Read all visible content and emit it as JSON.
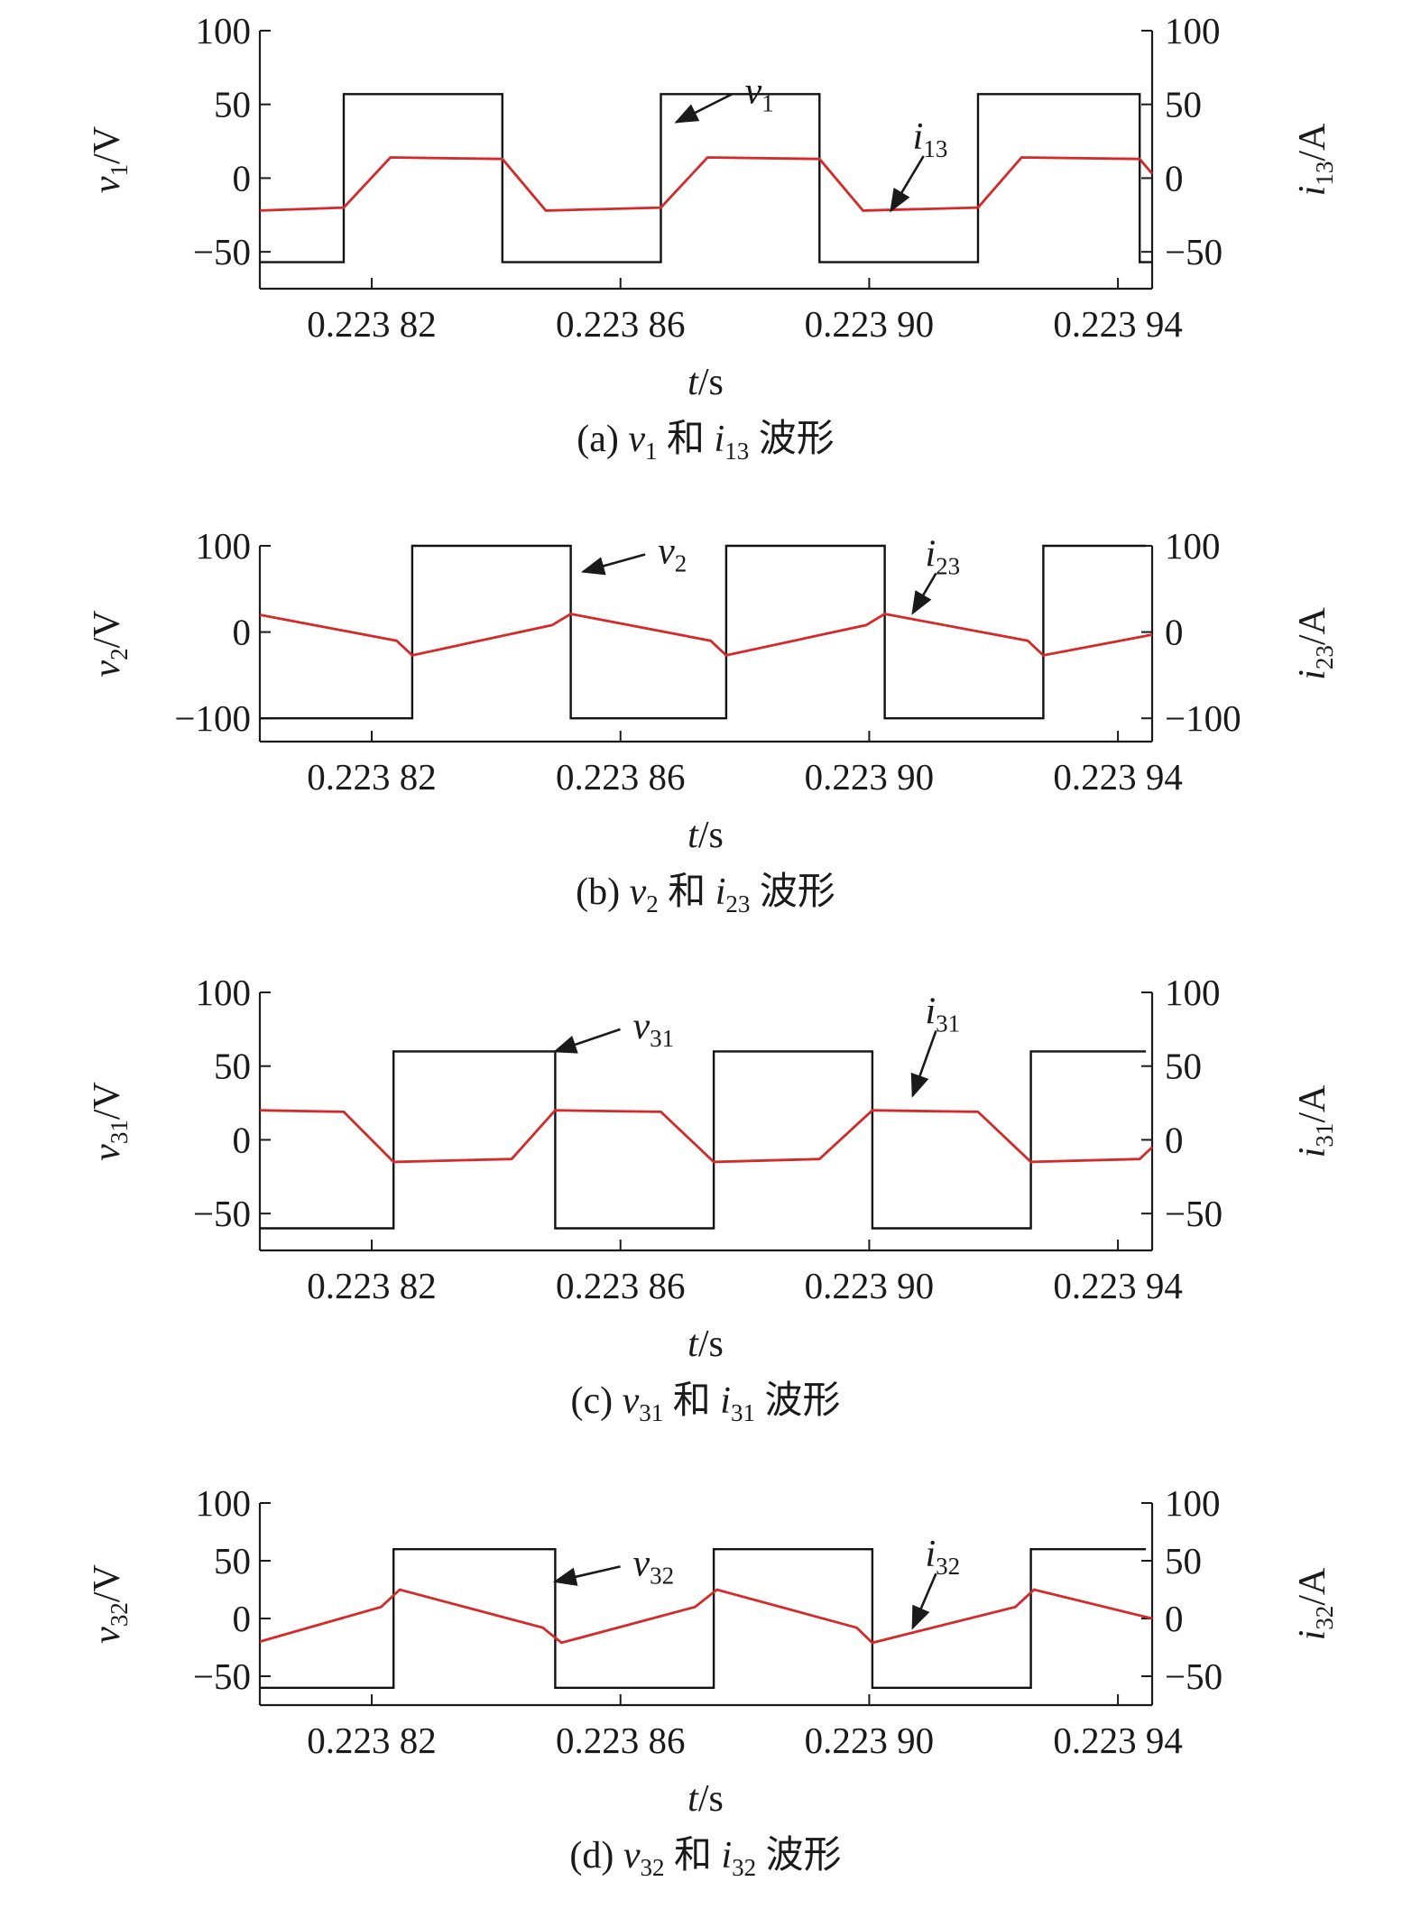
{
  "colors": {
    "voltage": "#111111",
    "current": "#d42a2a",
    "axis": "#1a1a1a"
  },
  "chart_data": [
    {
      "type": "line",
      "id": "a",
      "caption": {
        "label": "(a)",
        "v_sym": "v",
        "v_sub": "1",
        "and": "和",
        "i_sym": "i",
        "i_sub": "13",
        "tail": "波形"
      },
      "xlabel": {
        "sym": "t",
        "unit": "/s"
      },
      "ylabel_left": {
        "sym": "v",
        "sub": "1",
        "unit": "/V"
      },
      "ylabel_right": {
        "sym": "i",
        "sub": "13",
        "unit": "/A"
      },
      "xlim": [
        0.223802,
        0.2239455
      ],
      "ylim": [
        -75,
        100
      ],
      "x_ticks": [
        0.22382,
        0.22386,
        0.2239,
        0.22394
      ],
      "x_tick_labels": [
        "0.223 82",
        "0.223 86",
        "0.223 90",
        "0.223 94"
      ],
      "y_ticks_left": [
        100,
        50,
        0,
        -50
      ],
      "y_tick_labels_left": [
        "100",
        "50",
        "0",
        "−50"
      ],
      "y_ticks_right": [
        100,
        50,
        0,
        -50
      ],
      "y_tick_labels_right": [
        "100",
        "50",
        "0",
        "−50"
      ],
      "series": [
        {
          "name": "v1",
          "axis": "left",
          "x": [
            0.223802,
            0.2238155,
            0.2238155,
            0.223841,
            0.223841,
            0.2238665,
            0.2238665,
            0.223892,
            0.223892,
            0.2239175,
            0.2239175,
            0.2239435,
            0.2239435,
            0.2239455
          ],
          "y": [
            -57,
            -57,
            57,
            57,
            -57,
            -57,
            57,
            57,
            -57,
            -57,
            57,
            57,
            -57,
            -57
          ]
        },
        {
          "name": "i13",
          "axis": "right",
          "x": [
            0.223802,
            0.2238155,
            0.223823,
            0.223841,
            0.223848,
            0.2238665,
            0.223874,
            0.223892,
            0.223899,
            0.2239175,
            0.2239245,
            0.2239435,
            0.2239455
          ],
          "y": [
            -22,
            -20,
            14,
            13,
            -22,
            -20,
            14,
            13,
            -22,
            -20,
            14,
            13,
            3
          ]
        }
      ],
      "annotations": [
        {
          "name": "v1-annotation",
          "sym": "v",
          "sub": "1",
          "x": 0.223869,
          "y": 38,
          "tx": 0.22388,
          "ty": 57
        },
        {
          "name": "i13-annotation",
          "sym": "i",
          "sub": "13",
          "x": 0.2239035,
          "y": -22,
          "tx": 0.223907,
          "ty": 26
        }
      ]
    },
    {
      "type": "line",
      "id": "b",
      "caption": {
        "label": "(b)",
        "v_sym": "v",
        "v_sub": "2",
        "and": "和",
        "i_sym": "i",
        "i_sub": "23",
        "tail": "波形"
      },
      "xlabel": {
        "sym": "t",
        "unit": "/s"
      },
      "ylabel_left": {
        "sym": "v",
        "sub": "2",
        "unit": "/V"
      },
      "ylabel_right": {
        "sym": "i",
        "sub": "23",
        "unit": "/A"
      },
      "xlim": [
        0.223802,
        0.2239455
      ],
      "ylim": [
        -127,
        100
      ],
      "x_ticks": [
        0.22382,
        0.22386,
        0.2239,
        0.22394
      ],
      "x_tick_labels": [
        "0.223 82",
        "0.223 86",
        "0.223 90",
        "0.223 94"
      ],
      "y_ticks_left": [
        100,
        0,
        -100
      ],
      "y_tick_labels_left": [
        "100",
        "0",
        "−100"
      ],
      "y_ticks_right": [
        100,
        0,
        -100
      ],
      "y_tick_labels_right": [
        "100",
        "0",
        "−100"
      ],
      "series": [
        {
          "name": "v2",
          "axis": "left",
          "x": [
            0.223802,
            0.2238265,
            0.2238265,
            0.223852,
            0.223852,
            0.223877,
            0.223877,
            0.2239025,
            0.2239025,
            0.223928,
            0.223928,
            0.2239445
          ],
          "y": [
            -100,
            -100,
            100,
            100,
            -100,
            -100,
            100,
            100,
            -100,
            -100,
            100,
            100
          ]
        },
        {
          "name": "i23",
          "axis": "right",
          "x": [
            0.223802,
            0.223824,
            0.2238265,
            0.223849,
            0.223852,
            0.2238745,
            0.223877,
            0.2238995,
            0.2239025,
            0.2239255,
            0.223928,
            0.2239455
          ],
          "y": [
            20,
            -10,
            -27,
            8,
            21,
            -10,
            -27,
            8,
            21,
            -10,
            -27,
            -3
          ]
        }
      ],
      "annotations": [
        {
          "name": "v2-annotation",
          "sym": "v",
          "sub": "2",
          "x": 0.223854,
          "y": 70,
          "tx": 0.223866,
          "ty": 90
        },
        {
          "name": "i23-annotation",
          "sym": "i",
          "sub": "23",
          "x": 0.223907,
          "y": 22,
          "tx": 0.223909,
          "ty": 87
        }
      ]
    },
    {
      "type": "line",
      "id": "c",
      "caption": {
        "label": "(c)",
        "v_sym": "v",
        "v_sub": "31",
        "and": "和",
        "i_sym": "i",
        "i_sub": "31",
        "tail": "波形"
      },
      "xlabel": {
        "sym": "t",
        "unit": "/s"
      },
      "ylabel_left": {
        "sym": "v",
        "sub": "31",
        "unit": "/V"
      },
      "ylabel_right": {
        "sym": "i",
        "sub": "31",
        "unit": "/A"
      },
      "xlim": [
        0.223802,
        0.2239455
      ],
      "ylim": [
        -75,
        100
      ],
      "x_ticks": [
        0.22382,
        0.22386,
        0.2239,
        0.22394
      ],
      "x_tick_labels": [
        "0.223 82",
        "0.223 86",
        "0.223 90",
        "0.223 94"
      ],
      "y_ticks_left": [
        100,
        50,
        0,
        -50
      ],
      "y_tick_labels_left": [
        "100",
        "50",
        "0",
        "−50"
      ],
      "y_ticks_right": [
        100,
        50,
        0,
        -50
      ],
      "y_tick_labels_right": [
        "100",
        "50",
        "0",
        "−50"
      ],
      "series": [
        {
          "name": "v31",
          "axis": "left",
          "x": [
            0.223802,
            0.2238235,
            0.2238235,
            0.2238495,
            0.2238495,
            0.223875,
            0.223875,
            0.2239005,
            0.2239005,
            0.223926,
            0.223926,
            0.2239445
          ],
          "y": [
            -60,
            -60,
            60,
            60,
            -60,
            -60,
            60,
            60,
            -60,
            -60,
            60,
            60
          ]
        },
        {
          "name": "i31",
          "axis": "right",
          "x": [
            0.223802,
            0.2238155,
            0.2238235,
            0.2238425,
            0.2238495,
            0.2238665,
            0.223875,
            0.223892,
            0.2239005,
            0.2239175,
            0.223926,
            0.2239435,
            0.2239455
          ],
          "y": [
            20,
            19,
            -15,
            -13,
            20,
            19,
            -15,
            -13,
            20,
            19,
            -15,
            -13,
            -5
          ]
        }
      ],
      "annotations": [
        {
          "name": "v31-annotation",
          "sym": "v",
          "sub": "31",
          "x": 0.2238495,
          "y": 60,
          "tx": 0.223862,
          "ty": 75
        },
        {
          "name": "i31-annotation",
          "sym": "i",
          "sub": "31",
          "x": 0.223907,
          "y": 30,
          "tx": 0.223909,
          "ty": 85
        }
      ]
    },
    {
      "type": "line",
      "id": "d",
      "caption": {
        "label": "(d)",
        "v_sym": "v",
        "v_sub": "32",
        "and": "和",
        "i_sym": "i",
        "i_sub": "32",
        "tail": "波形"
      },
      "xlabel": {
        "sym": "t",
        "unit": "/s"
      },
      "ylabel_left": {
        "sym": "v",
        "sub": "32",
        "unit": "/V"
      },
      "ylabel_right": {
        "sym": "i",
        "sub": "32",
        "unit": "/A"
      },
      "xlim": [
        0.223802,
        0.2239455
      ],
      "ylim": [
        -75,
        100
      ],
      "x_ticks": [
        0.22382,
        0.22386,
        0.2239,
        0.22394
      ],
      "x_tick_labels": [
        "0.223 82",
        "0.223 86",
        "0.223 90",
        "0.223 94"
      ],
      "y_ticks_left": [
        100,
        50,
        0,
        -50
      ],
      "y_tick_labels_left": [
        "100",
        "50",
        "0",
        "−50"
      ],
      "y_ticks_right": [
        100,
        50,
        0,
        -50
      ],
      "y_tick_labels_right": [
        "100",
        "50",
        "0",
        "−50"
      ],
      "series": [
        {
          "name": "v32",
          "axis": "left",
          "x": [
            0.223802,
            0.2238235,
            0.2238235,
            0.2238495,
            0.2238495,
            0.223875,
            0.223875,
            0.2239005,
            0.2239005,
            0.223926,
            0.223926,
            0.2239445
          ],
          "y": [
            -60,
            -60,
            60,
            60,
            -60,
            -60,
            60,
            60,
            -60,
            -60,
            60,
            60
          ]
        },
        {
          "name": "i32",
          "axis": "right",
          "x": [
            0.223802,
            0.2238215,
            0.2238245,
            0.2238475,
            0.2238505,
            0.223872,
            0.2238755,
            0.223898,
            0.2239005,
            0.2239235,
            0.2239265,
            0.2239455
          ],
          "y": [
            -20,
            10,
            25,
            -8,
            -21,
            10,
            25,
            -8,
            -21,
            10,
            25,
            0
          ]
        }
      ],
      "annotations": [
        {
          "name": "v32-annotation",
          "sym": "v",
          "sub": "32",
          "x": 0.2238495,
          "y": 32,
          "tx": 0.223862,
          "ty": 45
        },
        {
          "name": "i32-annotation",
          "sym": "i",
          "sub": "32",
          "x": 0.223907,
          "y": -8,
          "tx": 0.223909,
          "ty": 53
        }
      ]
    }
  ]
}
